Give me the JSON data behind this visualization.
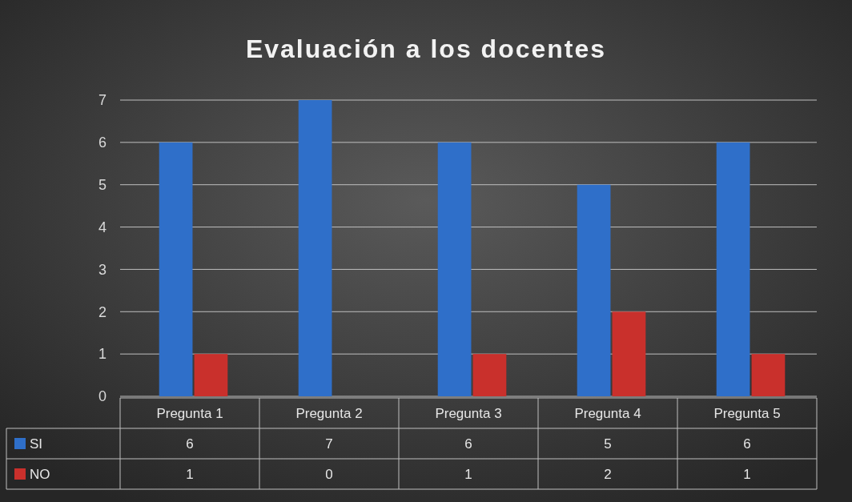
{
  "chart_data": {
    "type": "bar",
    "title": "Evaluación a los docentes",
    "categories": [
      "Pregunta 1",
      "Pregunta 2",
      "Pregunta 3",
      "Pregunta 4",
      "Pregunta 5"
    ],
    "series": [
      {
        "name": "SI",
        "color": "#2f6fc9",
        "values": [
          6,
          7,
          6,
          5,
          6
        ]
      },
      {
        "name": "NO",
        "color": "#c9302c",
        "values": [
          1,
          0,
          1,
          2,
          1
        ]
      }
    ],
    "ylim": [
      0,
      7
    ],
    "yticks": [
      0,
      1,
      2,
      3,
      4,
      5,
      6,
      7
    ],
    "grid": "y",
    "legend": "bottom",
    "data_labels": true
  }
}
